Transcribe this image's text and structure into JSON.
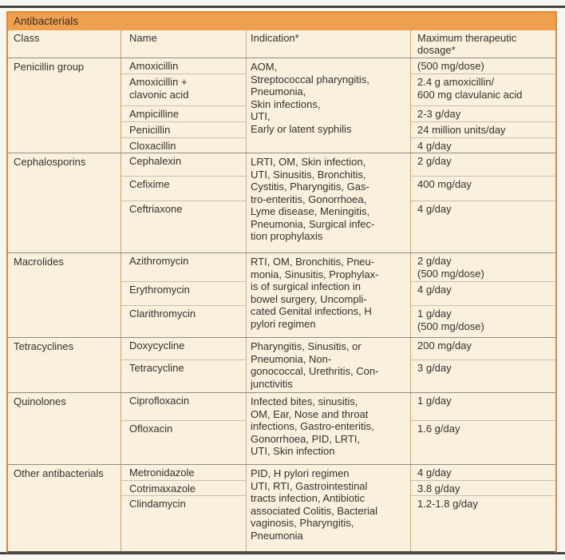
{
  "title": "Antibacterials",
  "columns": [
    "Class",
    "Name",
    "Indication*",
    "Maximum therapeutic\ndosage*"
  ],
  "colors": {
    "header_bar": "#efa04e",
    "table_background": "#f9f1de",
    "outer_border": "#e0873a",
    "text": "#35312c"
  },
  "groups": [
    {
      "class_name": "Penicillin group",
      "indication": "AOM,\nStreptococcal pharyngitis,\nPneumonia,\nSkin infections,\nUTI,\nEarly or latent syphilis",
      "rows": [
        {
          "name": "Amoxicillin",
          "dosage": "(500 mg/dose)"
        },
        {
          "name": "Amoxicillin +\nclavonic acid",
          "dosage": "2.4 g amoxicillin/\n600 mg clavulanic acid"
        },
        {
          "name": "Ampicilline",
          "dosage": "2-3 g/day"
        },
        {
          "name": "Penicillin",
          "dosage": "24 million units/day"
        },
        {
          "name": "Cloxacillin",
          "dosage": "4 g/day"
        }
      ]
    },
    {
      "class_name": "Cephalosporins",
      "indication": "LRTI, OM, Skin infection,\nUTI, Sinusitis, Bronchitis,\nCystitis, Pharyngitis, Gas-\ntro-enteritis, Gonorrhoea,\nLyme disease, Meningitis,\nPneumonia, Surgical infec-\ntion prophylaxis",
      "rows": [
        {
          "name": "Cephalexin",
          "dosage": "2 g/day"
        },
        {
          "name": "Cefixime",
          "dosage": "400 mg/day"
        },
        {
          "name": "Ceftriaxone",
          "dosage": "4 g/day"
        }
      ]
    },
    {
      "class_name": "Macrolides",
      "indication": "RTI, OM, Bronchitis, Pneu-\nmonia, Sinusitis, Prophylax-\nis of surgical infection in\nbowel surgery, Uncompli-\ncated Genital infections, H\npylori regimen",
      "rows": [
        {
          "name": "Azithromycin",
          "dosage": "2 g/day\n(500 mg/dose)"
        },
        {
          "name": "Erythromycin",
          "dosage": "4 g/day"
        },
        {
          "name": "Clarithromycin",
          "dosage": "1 g/day\n(500 mg/dose)"
        }
      ]
    },
    {
      "class_name": "Tetracyclines",
      "indication": "Pharyngitis, Sinusitis, or\nPneumonia, Non-\ngonococcal, Urethritis, Con-\njunctivitis",
      "rows": [
        {
          "name": "Doxycycline",
          "dosage": "200 mg/day"
        },
        {
          "name": "Tetracycline",
          "dosage": "3 g/day"
        }
      ]
    },
    {
      "class_name": "Quinolones",
      "indication": "Infected bites, sinusitis,\nOM, Ear, Nose and throat\ninfections, Gastro-enteritis,\nGonorrhoea, PID, LRTI,\nUTI, Skin infection",
      "rows": [
        {
          "name": "Ciprofloxacin",
          "dosage": "1 g/day"
        },
        {
          "name": "Ofloxacin",
          "dosage": "1.6 g/day"
        }
      ]
    },
    {
      "class_name": "Other antibacterials",
      "indication": "PID, H pylori regimen\nUTI, RTI, Gastrointestinal\ntracts infection, Antibiotic\nassociated Colitis, Bacterial\nvaginosis, Pharyngitis,\nPneumonia",
      "rows": [
        {
          "name": "Metronidazole",
          "dosage": "4 g/day"
        },
        {
          "name": "Cotrimaxazole",
          "dosage": "3.8 g/day"
        },
        {
          "name": "Clindamycin",
          "dosage": "1.2-1.8 g/day"
        }
      ]
    }
  ]
}
